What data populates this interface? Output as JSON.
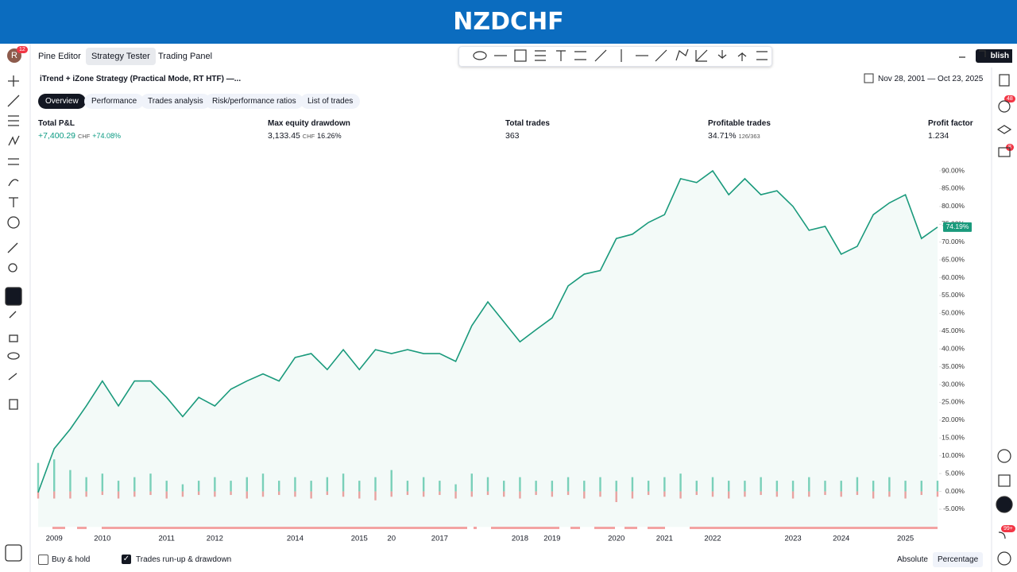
{
  "header": {
    "title": "NZDCHF"
  },
  "top_tabs": [
    "Pine Editor",
    "Strategy Tester",
    "Trading Panel"
  ],
  "avatar": "R",
  "avatar_badge": "12",
  "publish_button": "blish",
  "strategy_name": "iTrend + iZone Strategy (Practical Mode, RT HTF) —...",
  "date_range": "Nov 28, 2001 — Oct 23, 2025",
  "sub_tabs": [
    "Overview",
    "Performance",
    "Trades analysis",
    "Risk/performance ratios",
    "List of trades"
  ],
  "metrics": [
    {
      "label": "Total P&L",
      "value": "+7,400.29",
      "unit": "CHF",
      "extra": "+74.08%"
    },
    {
      "label": "Max equity drawdown",
      "value": "3,133.45",
      "unit": "CHF",
      "extra": "16.26%"
    },
    {
      "label": "Total trades",
      "value": "363"
    },
    {
      "label": "Profitable trades",
      "value": "34.71%",
      "extra": "126/363"
    },
    {
      "label": "Profit factor",
      "value": "1.234"
    }
  ],
  "right_badges": [
    "48",
    "8",
    "99+"
  ],
  "bottom": {
    "buy_hold": "Buy & hold",
    "runup": "Trades run-up & drawdown",
    "absolute": "Absolute",
    "percentage": "Percentage"
  },
  "chart_data": {
    "type": "line",
    "color": "#1a9a7c",
    "categories": [
      null,
      "2009",
      null,
      null,
      "2010",
      null,
      null,
      null,
      "2011",
      null,
      null,
      "2012",
      null,
      null,
      null,
      null,
      "2014",
      null,
      null,
      null,
      "2015",
      null,
      "20",
      null,
      null,
      "2017",
      null,
      null,
      null,
      null,
      "2018",
      null,
      "2019",
      null,
      null,
      null,
      "2020",
      null,
      null,
      "2021",
      null,
      null,
      "2022",
      null,
      null,
      null,
      null,
      "2023",
      null,
      null,
      "2024",
      null,
      null,
      null,
      "2025",
      null,
      null
    ],
    "series": [
      {
        "name": "Equity",
        "color": "#1a9a7c",
        "values": [
          -0.3,
          12,
          17.5,
          24,
          31,
          24,
          31,
          31,
          26.4,
          21,
          26.4,
          24,
          28.7,
          31,
          33,
          31,
          37.6,
          38.7,
          34.2,
          39.8,
          34.2,
          39.8,
          38.7,
          39.8,
          38.7,
          38.7,
          36.5,
          46.5,
          53.2,
          47.6,
          42,
          45.4,
          48.7,
          57.7,
          61,
          62,
          71,
          72.2,
          75.5,
          77.7,
          87.8,
          86.7,
          90,
          83.3,
          87.8,
          83.3,
          84.4,
          80,
          73.3,
          74.4,
          66.6,
          68.8,
          77.7,
          81,
          83.3,
          71,
          74.19
        ]
      },
      {
        "name": "Run-up",
        "color": "#7fd3bd",
        "values": [
          8,
          9,
          6,
          4,
          5,
          3,
          4,
          5,
          3,
          2,
          3,
          4,
          3,
          4,
          5,
          3,
          4,
          3,
          4,
          5,
          3,
          4,
          6,
          3,
          4,
          3,
          2,
          5,
          4,
          3,
          4,
          3,
          3,
          4,
          3,
          4,
          3,
          4,
          3,
          4,
          5,
          3,
          4,
          3,
          3,
          4,
          3,
          3,
          4,
          3,
          3,
          4,
          3,
          4,
          3,
          3,
          3
        ]
      },
      {
        "name": "Drawdown",
        "color": "#f4a3a3",
        "values": [
          -2,
          -2,
          -2,
          -1.5,
          -1,
          -2,
          -1.5,
          -1,
          -2,
          -1.5,
          -1,
          -1.5,
          -1,
          -2,
          -1.5,
          -1,
          -1.5,
          -2,
          -1,
          -1.5,
          -2,
          -2.5,
          -1.5,
          -1,
          -1.5,
          -1,
          -2,
          -1.5,
          -1,
          -1.5,
          -2,
          -1,
          -1.5,
          -1,
          -2,
          -1.5,
          -3,
          -2,
          -1,
          -1.5,
          -2,
          -1,
          -1.5,
          -2,
          -1.5,
          -1,
          -1.5,
          -2,
          -1.5,
          -1,
          -1.5,
          -1,
          -2,
          -1.5,
          -2,
          -1,
          -1.5
        ]
      }
    ],
    "current_value_label": "74.19%",
    "ylim": [
      -10,
      95
    ],
    "yticks": [
      {
        "value": 90,
        "label": "90.00%"
      },
      {
        "value": 85,
        "label": "85.00%"
      },
      {
        "value": 80,
        "label": "80.00%"
      },
      {
        "value": 75,
        "label": "75.00%"
      },
      {
        "value": 70,
        "label": "70.00%"
      },
      {
        "value": 65,
        "label": "65.00%"
      },
      {
        "value": 60,
        "label": "60.00%"
      },
      {
        "value": 55,
        "label": "55.00%"
      },
      {
        "value": 50,
        "label": "50.00%"
      },
      {
        "value": 45,
        "label": "45.00%"
      },
      {
        "value": 40,
        "label": "40.00%"
      },
      {
        "value": 35,
        "label": "35.00%"
      },
      {
        "value": 30,
        "label": "30.00%"
      },
      {
        "value": 25,
        "label": "25.00%"
      },
      {
        "value": 20,
        "label": "20.00%"
      },
      {
        "value": 15,
        "label": "15.00%"
      },
      {
        "value": 10,
        "label": "10.00%"
      },
      {
        "value": 5,
        "label": "5.00%"
      },
      {
        "value": 0,
        "label": "0.00%"
      },
      {
        "value": -5,
        "label": "-5.00%"
      }
    ]
  }
}
